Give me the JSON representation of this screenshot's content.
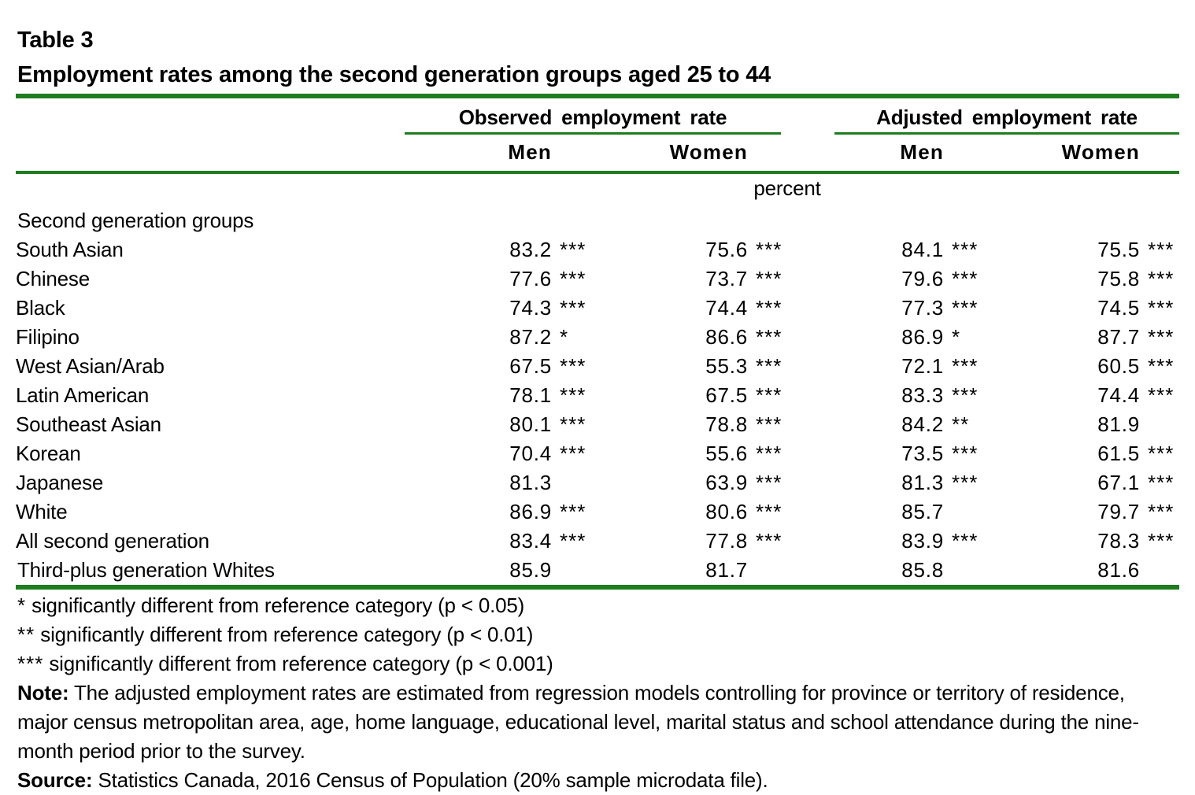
{
  "title": "Table 3",
  "subtitle": "Employment rates among the second generation groups aged 25 to 44",
  "header": {
    "groups": [
      {
        "label": "Observed employment rate",
        "columns": [
          "Men",
          "Women"
        ]
      },
      {
        "label": "Adjusted employment rate",
        "columns": [
          "Men",
          "Women"
        ]
      }
    ],
    "unit": "percent"
  },
  "rows": [
    {
      "label": "Second generation groups",
      "bold": true,
      "indent": false,
      "cells": []
    },
    {
      "label": "South Asian",
      "bold": false,
      "indent": true,
      "cells": [
        {
          "num": "83.2",
          "sig": "***"
        },
        {
          "num": "75.6",
          "sig": "***"
        },
        {
          "num": "84.1",
          "sig": "***"
        },
        {
          "num": "75.5",
          "sig": "***"
        }
      ]
    },
    {
      "label": "Chinese",
      "bold": false,
      "indent": true,
      "cells": [
        {
          "num": "77.6",
          "sig": "***"
        },
        {
          "num": "73.7",
          "sig": "***"
        },
        {
          "num": "79.6",
          "sig": "***"
        },
        {
          "num": "75.8",
          "sig": "***"
        }
      ]
    },
    {
      "label": "Black",
      "bold": false,
      "indent": true,
      "cells": [
        {
          "num": "74.3",
          "sig": "***"
        },
        {
          "num": "74.4",
          "sig": "***"
        },
        {
          "num": "77.3",
          "sig": "***"
        },
        {
          "num": "74.5",
          "sig": "***"
        }
      ]
    },
    {
      "label": "Filipino",
      "bold": false,
      "indent": true,
      "cells": [
        {
          "num": "87.2",
          "sig": "*"
        },
        {
          "num": "86.6",
          "sig": "***"
        },
        {
          "num": "86.9",
          "sig": "*"
        },
        {
          "num": "87.7",
          "sig": "***"
        }
      ]
    },
    {
      "label": "West Asian/Arab",
      "bold": false,
      "indent": true,
      "cells": [
        {
          "num": "67.5",
          "sig": "***"
        },
        {
          "num": "55.3",
          "sig": "***"
        },
        {
          "num": "72.1",
          "sig": "***"
        },
        {
          "num": "60.5",
          "sig": "***"
        }
      ]
    },
    {
      "label": "Latin American",
      "bold": false,
      "indent": true,
      "cells": [
        {
          "num": "78.1",
          "sig": "***"
        },
        {
          "num": "67.5",
          "sig": "***"
        },
        {
          "num": "83.3",
          "sig": "***"
        },
        {
          "num": "74.4",
          "sig": "***"
        }
      ]
    },
    {
      "label": "Southeast Asian",
      "bold": false,
      "indent": true,
      "cells": [
        {
          "num": "80.1",
          "sig": "***"
        },
        {
          "num": "78.8",
          "sig": "***"
        },
        {
          "num": "84.2",
          "sig": "**"
        },
        {
          "num": "81.9",
          "sig": ""
        }
      ]
    },
    {
      "label": "Korean",
      "bold": false,
      "indent": true,
      "cells": [
        {
          "num": "70.4",
          "sig": "***"
        },
        {
          "num": "55.6",
          "sig": "***"
        },
        {
          "num": "73.5",
          "sig": "***"
        },
        {
          "num": "61.5",
          "sig": "***"
        }
      ]
    },
    {
      "label": "Japanese",
      "bold": false,
      "indent": true,
      "cells": [
        {
          "num": "81.3",
          "sig": ""
        },
        {
          "num": "63.9",
          "sig": "***"
        },
        {
          "num": "81.3",
          "sig": "***"
        },
        {
          "num": "67.1",
          "sig": "***"
        }
      ]
    },
    {
      "label": "White",
      "bold": false,
      "indent": true,
      "cells": [
        {
          "num": "86.9",
          "sig": "***"
        },
        {
          "num": "80.6",
          "sig": "***"
        },
        {
          "num": "85.7",
          "sig": ""
        },
        {
          "num": "79.7",
          "sig": "***"
        }
      ]
    },
    {
      "label": "All second generation",
      "bold": true,
      "indent": true,
      "cells": [
        {
          "num": "83.4",
          "sig": "***"
        },
        {
          "num": "77.8",
          "sig": "***"
        },
        {
          "num": "83.9",
          "sig": "***"
        },
        {
          "num": "78.3",
          "sig": "***"
        }
      ]
    },
    {
      "label": "Third-plus generation Whites",
      "bold": false,
      "indent": false,
      "cells": [
        {
          "num": "85.9",
          "sig": ""
        },
        {
          "num": "81.7",
          "sig": ""
        },
        {
          "num": "85.8",
          "sig": ""
        },
        {
          "num": "81.6",
          "sig": ""
        }
      ]
    }
  ],
  "significance_notes": [
    {
      "symbol": "*",
      "text": "significantly different from reference category (p < 0.05)"
    },
    {
      "symbol": "**",
      "text": "significantly different from reference category (p < 0.01)"
    },
    {
      "symbol": "***",
      "text": "significantly different from reference category (p < 0.001)"
    }
  ],
  "note_label": "Note:",
  "note_text": "The adjusted employment rates are estimated from regression models controlling for province or territory of residence, major census metropolitan area, age, home language, educational level, marital status and school attendance during the nine-month period prior to the survey.",
  "source_label": "Source:",
  "source_text": "Statistics Canada, 2016 Census of Population (20% sample microdata file).",
  "colors": {
    "rule_green": "#1e7d1e",
    "text": "#000000",
    "background": "#ffffff"
  }
}
